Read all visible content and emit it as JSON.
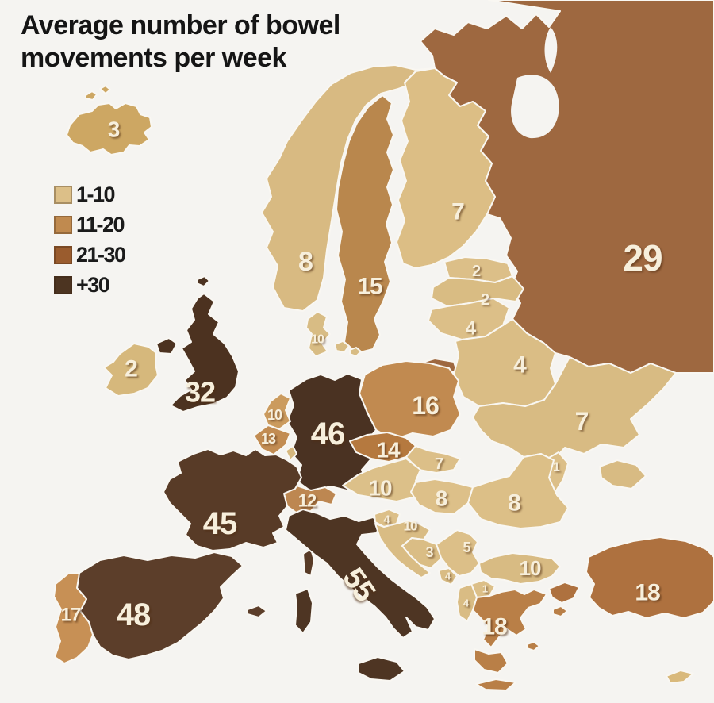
{
  "title": {
    "line1": "Average number of bowel",
    "line2": "movements per week"
  },
  "legend": {
    "items": [
      {
        "label": "1-10",
        "color": "#dcbf88"
      },
      {
        "label": "11-20",
        "color": "#c08a4f"
      },
      {
        "label": "21-30",
        "color": "#9a5c2e"
      },
      {
        "label": "+30",
        "color": "#4c3421"
      }
    ]
  },
  "map": {
    "value_text_color": "#f7efdc",
    "countries": [
      {
        "name": "russia",
        "value": "29",
        "fill": "#9e6840"
      },
      {
        "name": "iceland",
        "value": "3",
        "fill": "#cda763"
      },
      {
        "name": "norway",
        "value": "8",
        "fill": "#d8ba82"
      },
      {
        "name": "sweden",
        "value": "15",
        "fill": "#b9874d"
      },
      {
        "name": "finland",
        "value": "7",
        "fill": "#dcbe85"
      },
      {
        "name": "estonia",
        "value": "2",
        "fill": "#dcbf88"
      },
      {
        "name": "latvia",
        "value": "2",
        "fill": "#d9bc83"
      },
      {
        "name": "lithuania",
        "value": "4",
        "fill": "#dcbf88"
      },
      {
        "name": "belarus",
        "value": "4",
        "fill": "#dabd85"
      },
      {
        "name": "ukraine",
        "value": "7",
        "fill": "#d8bb83"
      },
      {
        "name": "moldova",
        "value": "1",
        "fill": "#dcbf88"
      },
      {
        "name": "poland",
        "value": "16",
        "fill": "#c18a50"
      },
      {
        "name": "germany",
        "value": "46",
        "fill": "#4a3222"
      },
      {
        "name": "denmark",
        "value": "10",
        "fill": "#d8bc84"
      },
      {
        "name": "netherlands",
        "value": "10",
        "fill": "#cb9b5e"
      },
      {
        "name": "belgium",
        "value": "13",
        "fill": "#c28c52"
      },
      {
        "name": "luxembourg",
        "value": "",
        "fill": "#d6b87e"
      },
      {
        "name": "uk",
        "value": "32",
        "fill": "#4c3220"
      },
      {
        "name": "ireland",
        "value": "2",
        "fill": "#d6b87c"
      },
      {
        "name": "czechia",
        "value": "14",
        "fill": "#b5793f"
      },
      {
        "name": "slovakia",
        "value": "7",
        "fill": "#dcbf88"
      },
      {
        "name": "austria",
        "value": "10",
        "fill": "#dcc089"
      },
      {
        "name": "switzerland",
        "value": "12",
        "fill": "#bd8751"
      },
      {
        "name": "hungary",
        "value": "8",
        "fill": "#ddc089"
      },
      {
        "name": "romania",
        "value": "8",
        "fill": "#dcbf87"
      },
      {
        "name": "france",
        "value": "45",
        "fill": "#583b27"
      },
      {
        "name": "spain",
        "value": "48",
        "fill": "#5c3e2a"
      },
      {
        "name": "portugal",
        "value": "17",
        "fill": "#c79055"
      },
      {
        "name": "italy",
        "value": "55",
        "fill": "#4e3523"
      },
      {
        "name": "slovenia",
        "value": "4",
        "fill": "#dcbf88"
      },
      {
        "name": "croatia",
        "value": "10",
        "fill": "#d9bc84"
      },
      {
        "name": "bosnia",
        "value": "3",
        "fill": "#dabd85"
      },
      {
        "name": "serbia",
        "value": "5",
        "fill": "#dcbf88"
      },
      {
        "name": "montenegro",
        "value": "4",
        "fill": "#d9bc84"
      },
      {
        "name": "north-macedonia",
        "value": "1",
        "fill": "#dcbf88"
      },
      {
        "name": "albania",
        "value": "4",
        "fill": "#d9bc84"
      },
      {
        "name": "bulgaria",
        "value": "10",
        "fill": "#d8bb83"
      },
      {
        "name": "greece",
        "value": "18",
        "fill": "#b97f47"
      },
      {
        "name": "turkey",
        "value": "18",
        "fill": "#ae713f"
      },
      {
        "name": "cyprus",
        "value": "",
        "fill": "#d9b97b"
      }
    ]
  }
}
